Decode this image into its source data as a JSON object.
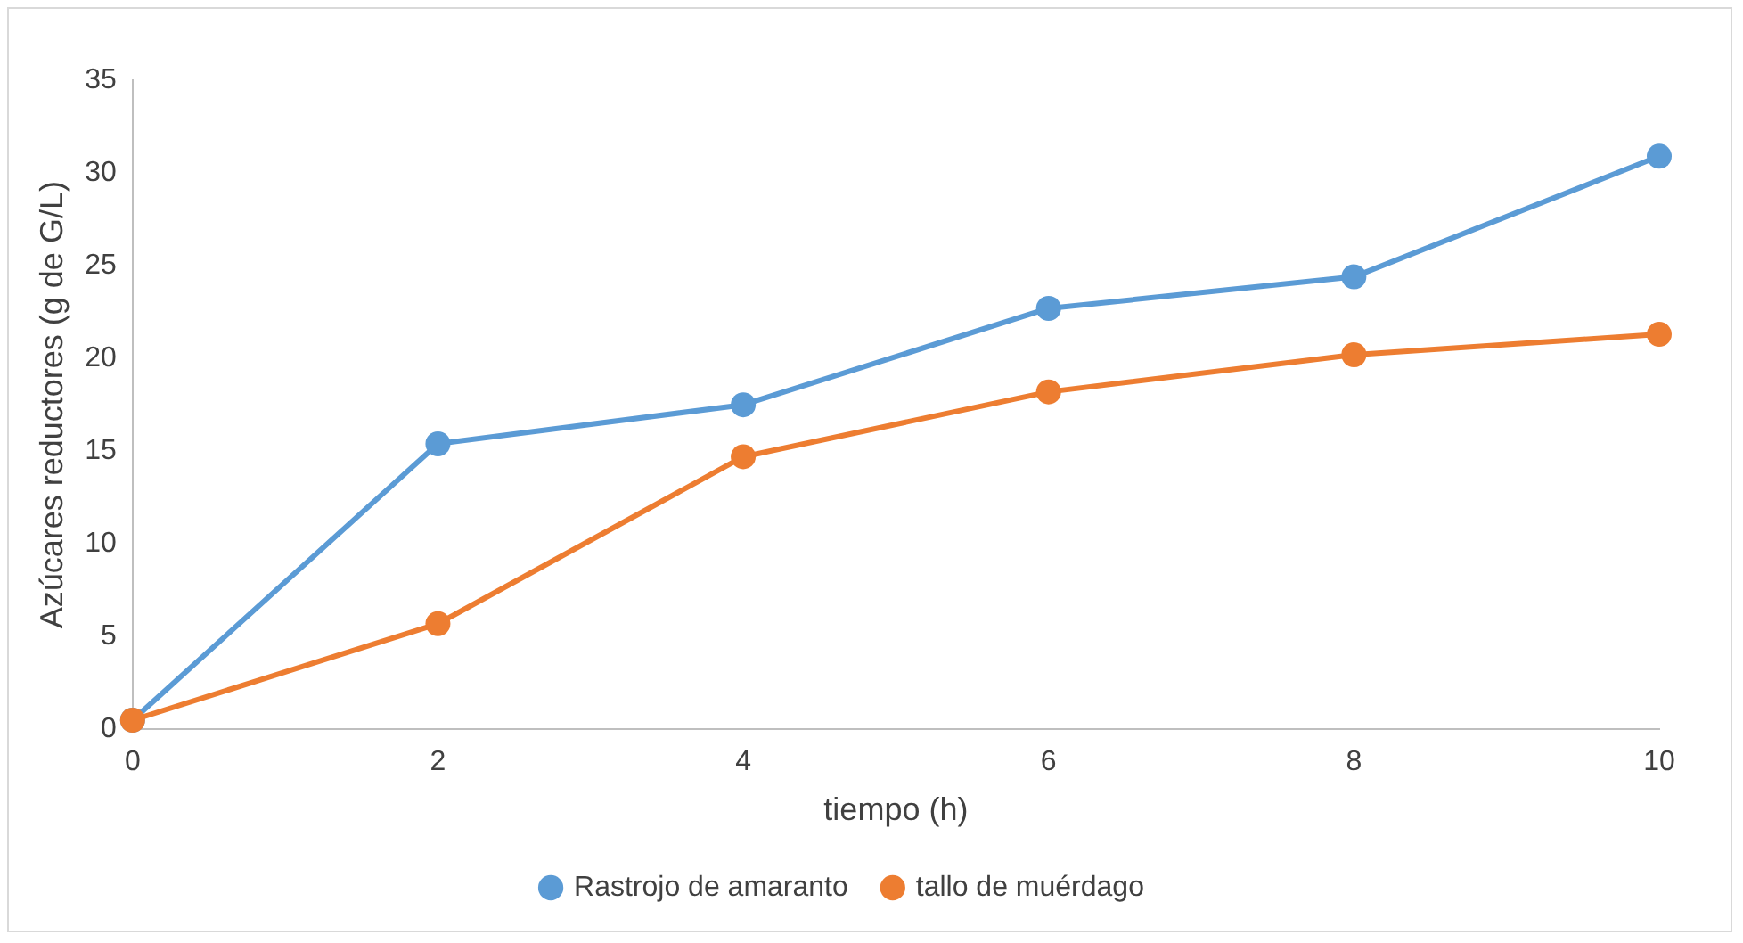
{
  "chart_data": {
    "type": "line",
    "xlabel": "tiempo (h)",
    "ylabel": "Azúcares reductores (g de G/L)",
    "x": [
      0,
      2,
      4,
      6,
      8,
      10
    ],
    "series": [
      {
        "name": "Rastrojo de amaranto",
        "color": "#5b9bd5",
        "values": [
          0.5,
          15.4,
          17.5,
          22.7,
          24.4,
          30.9
        ]
      },
      {
        "name": "tallo de muérdago",
        "color": "#ed7d31",
        "values": [
          0.5,
          5.7,
          14.7,
          18.2,
          20.2,
          21.3
        ]
      }
    ],
    "xlim": [
      0,
      10
    ],
    "xticks": [
      0,
      2,
      4,
      6,
      8,
      10
    ],
    "ylim": [
      0,
      35
    ],
    "yticks": [
      0,
      5,
      10,
      15,
      20,
      25,
      30,
      35
    ],
    "grid": false,
    "legend": "bottom",
    "marker": "circle",
    "line_style": "solid"
  }
}
